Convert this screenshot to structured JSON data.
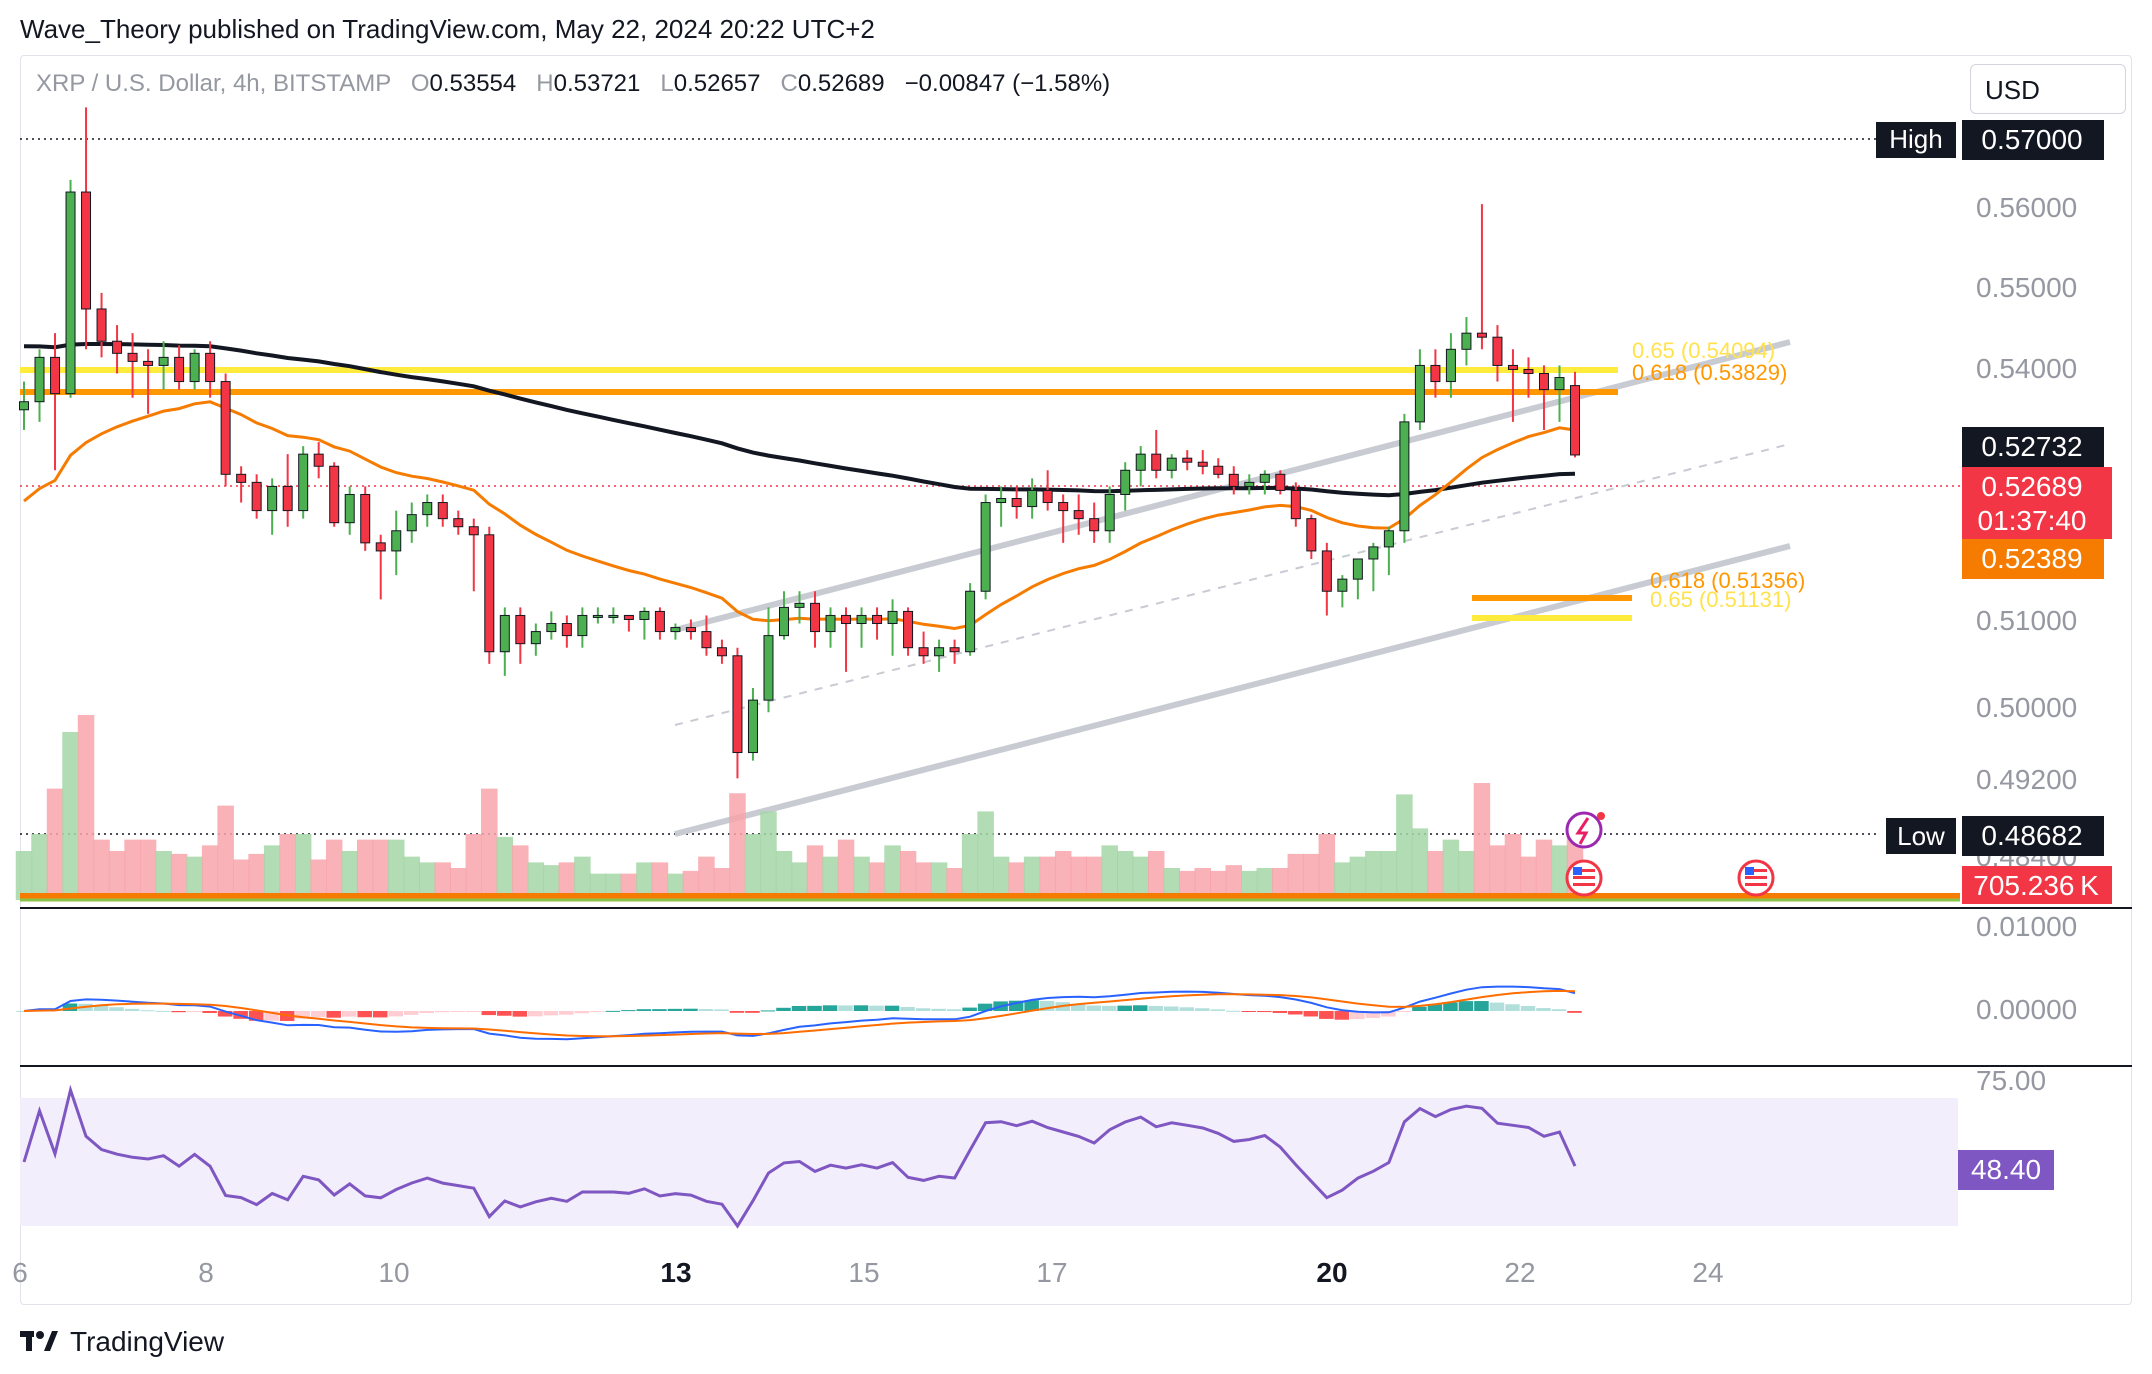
{
  "publisher_line": "Wave_Theory published on TradingView.com, May 22, 2024 20:22 UTC+2",
  "symbol": {
    "name": "XRP / U.S. Dollar, 4h, BITSTAMP",
    "o_label": "O",
    "o_value": "0.53554",
    "h_label": "H",
    "h_value": "0.53721",
    "l_label": "L",
    "l_value": "0.52657",
    "c_label": "C",
    "c_value": "0.52689",
    "change": "−0.00847 (−1.58%)"
  },
  "currency_button": "USD",
  "colors": {
    "up": "#4caf50",
    "down": "#f23645",
    "ema_black": "#131722",
    "ema_orange": "#f57c00",
    "fib_yellow": "#ffeb3b",
    "fib_orange": "#ff9800",
    "channel": "#c9cbd3",
    "macd_line": "#2962ff",
    "signal_line": "#ff6d00",
    "rsi": "#7e57c2"
  },
  "price_axis": [
    "0.56000",
    "0.55000",
    "0.54000",
    "0.51000",
    "0.50000",
    "0.49200",
    "0.48400"
  ],
  "price_labels": {
    "high_tag": "High",
    "high_value": "0.57000",
    "low_tag": "Low",
    "low_value": "0.48682",
    "ema_black_value": "0.52732",
    "last_price": "0.52689",
    "countdown": "01:37:40",
    "ema_orange_value": "0.52389",
    "volume_value": "705.236 K"
  },
  "fib_labels": {
    "upper_065": "0.65 (0.54094)",
    "upper_0618": "0.618 (0.53829)",
    "lower_0618": "0.618 (0.51356)",
    "lower_065": "0.65 (0.51131)"
  },
  "macd_axis": [
    "0.01000",
    "0.00000"
  ],
  "rsi_axis_top": "75.00",
  "rsi_value": "48.40",
  "time_axis": [
    "6",
    "8",
    "10",
    "13",
    "15",
    "17",
    "20",
    "22",
    "24"
  ],
  "footer_brand": "TradingView",
  "chart_data": {
    "type": "candlestick",
    "title": "XRP / U.S. Dollar, 4h, BITSTAMP",
    "ylim": [
      0.484,
      0.57
    ],
    "high": 0.57,
    "low": 0.48682,
    "candles": [
      [
        0.5325,
        0.536,
        0.53,
        0.5335
      ],
      [
        0.5335,
        0.54,
        0.531,
        0.539
      ],
      [
        0.539,
        0.542,
        0.525,
        0.5345
      ],
      [
        0.5345,
        0.561,
        0.534,
        0.5595
      ],
      [
        0.5595,
        0.57,
        0.54,
        0.545
      ],
      [
        0.545,
        0.547,
        0.539,
        0.541
      ],
      [
        0.541,
        0.543,
        0.537,
        0.5395
      ],
      [
        0.5395,
        0.542,
        0.534,
        0.5385
      ],
      [
        0.5385,
        0.54,
        0.532,
        0.538
      ],
      [
        0.538,
        0.541,
        0.535,
        0.539
      ],
      [
        0.539,
        0.5405,
        0.535,
        0.536
      ],
      [
        0.536,
        0.54,
        0.535,
        0.5395
      ],
      [
        0.5395,
        0.541,
        0.534,
        0.536
      ],
      [
        0.536,
        0.537,
        0.523,
        0.5245
      ],
      [
        0.5245,
        0.5255,
        0.521,
        0.5235
      ],
      [
        0.5235,
        0.5245,
        0.519,
        0.52
      ],
      [
        0.52,
        0.524,
        0.517,
        0.523
      ],
      [
        0.523,
        0.527,
        0.518,
        0.52
      ],
      [
        0.52,
        0.528,
        0.519,
        0.527
      ],
      [
        0.527,
        0.5285,
        0.524,
        0.5255
      ],
      [
        0.5255,
        0.526,
        0.518,
        0.5185
      ],
      [
        0.5185,
        0.523,
        0.517,
        0.522
      ],
      [
        0.522,
        0.523,
        0.515,
        0.516
      ],
      [
        0.516,
        0.517,
        0.509,
        0.515
      ],
      [
        0.515,
        0.52,
        0.512,
        0.5175
      ],
      [
        0.5175,
        0.521,
        0.516,
        0.5195
      ],
      [
        0.5195,
        0.522,
        0.518,
        0.521
      ],
      [
        0.521,
        0.522,
        0.518,
        0.519
      ],
      [
        0.519,
        0.52,
        0.517,
        0.518
      ],
      [
        0.518,
        0.519,
        0.51,
        0.517
      ],
      [
        0.517,
        0.518,
        0.501,
        0.5025
      ],
      [
        0.5025,
        0.508,
        0.4995,
        0.507
      ],
      [
        0.507,
        0.508,
        0.501,
        0.5035
      ],
      [
        0.5035,
        0.506,
        0.502,
        0.505
      ],
      [
        0.505,
        0.5075,
        0.504,
        0.506
      ],
      [
        0.506,
        0.507,
        0.503,
        0.5045
      ],
      [
        0.5045,
        0.508,
        0.503,
        0.507
      ],
      [
        0.507,
        0.508,
        0.506,
        0.507
      ],
      [
        0.507,
        0.508,
        0.506,
        0.507
      ],
      [
        0.507,
        0.507,
        0.505,
        0.5065
      ],
      [
        0.5065,
        0.508,
        0.504,
        0.5075
      ],
      [
        0.5075,
        0.508,
        0.504,
        0.505
      ],
      [
        0.505,
        0.506,
        0.504,
        0.5055
      ],
      [
        0.5055,
        0.5065,
        0.504,
        0.505
      ],
      [
        0.505,
        0.507,
        0.502,
        0.503
      ],
      [
        0.503,
        0.504,
        0.501,
        0.502
      ],
      [
        0.502,
        0.503,
        0.4868,
        0.49
      ],
      [
        0.49,
        0.498,
        0.489,
        0.4965
      ],
      [
        0.4965,
        0.508,
        0.495,
        0.5045
      ],
      [
        0.5045,
        0.51,
        0.504,
        0.508
      ],
      [
        0.508,
        0.51,
        0.506,
        0.5085
      ],
      [
        0.5085,
        0.51,
        0.503,
        0.505
      ],
      [
        0.505,
        0.508,
        0.503,
        0.507
      ],
      [
        0.507,
        0.508,
        0.5,
        0.506
      ],
      [
        0.506,
        0.508,
        0.503,
        0.507
      ],
      [
        0.507,
        0.508,
        0.504,
        0.506
      ],
      [
        0.506,
        0.509,
        0.502,
        0.5075
      ],
      [
        0.5075,
        0.508,
        0.502,
        0.503
      ],
      [
        0.503,
        0.505,
        0.501,
        0.502
      ],
      [
        0.502,
        0.504,
        0.5,
        0.503
      ],
      [
        0.503,
        0.504,
        0.501,
        0.5025
      ],
      [
        0.5025,
        0.511,
        0.502,
        0.51
      ],
      [
        0.51,
        0.522,
        0.509,
        0.521
      ],
      [
        0.521,
        0.523,
        0.518,
        0.5215
      ],
      [
        0.5215,
        0.523,
        0.519,
        0.5205
      ],
      [
        0.5205,
        0.524,
        0.519,
        0.5225
      ],
      [
        0.5225,
        0.525,
        0.52,
        0.521
      ],
      [
        0.521,
        0.522,
        0.516,
        0.52
      ],
      [
        0.52,
        0.522,
        0.517,
        0.519
      ],
      [
        0.519,
        0.521,
        0.516,
        0.5175
      ],
      [
        0.5175,
        0.523,
        0.516,
        0.522
      ],
      [
        0.522,
        0.526,
        0.52,
        0.525
      ],
      [
        0.525,
        0.528,
        0.523,
        0.527
      ],
      [
        0.527,
        0.53,
        0.524,
        0.525
      ],
      [
        0.525,
        0.527,
        0.524,
        0.5265
      ],
      [
        0.5265,
        0.5275,
        0.525,
        0.526
      ],
      [
        0.526,
        0.5275,
        0.5245,
        0.5255
      ],
      [
        0.5255,
        0.5265,
        0.524,
        0.5245
      ],
      [
        0.5245,
        0.5255,
        0.522,
        0.523
      ],
      [
        0.523,
        0.5245,
        0.522,
        0.5235
      ],
      [
        0.5235,
        0.525,
        0.522,
        0.5245
      ],
      [
        0.5245,
        0.525,
        0.522,
        0.5225
      ],
      [
        0.5225,
        0.5235,
        0.518,
        0.519
      ],
      [
        0.519,
        0.5195,
        0.514,
        0.515
      ],
      [
        0.515,
        0.516,
        0.507,
        0.51
      ],
      [
        0.51,
        0.512,
        0.508,
        0.5115
      ],
      [
        0.5115,
        0.514,
        0.509,
        0.514
      ],
      [
        0.514,
        0.516,
        0.51,
        0.5155
      ],
      [
        0.5155,
        0.518,
        0.512,
        0.5175
      ],
      [
        0.5175,
        0.532,
        0.516,
        0.531
      ],
      [
        0.531,
        0.54,
        0.53,
        0.538
      ],
      [
        0.538,
        0.54,
        0.534,
        0.536
      ],
      [
        0.536,
        0.542,
        0.534,
        0.54
      ],
      [
        0.54,
        0.544,
        0.538,
        0.542
      ],
      [
        0.542,
        0.558,
        0.54,
        0.5415
      ],
      [
        0.5415,
        0.543,
        0.536,
        0.538
      ],
      [
        0.538,
        0.54,
        0.531,
        0.5375
      ],
      [
        0.5375,
        0.539,
        0.534,
        0.537
      ],
      [
        0.537,
        0.538,
        0.53,
        0.535
      ],
      [
        0.535,
        0.538,
        0.531,
        0.5365
      ],
      [
        0.5355,
        0.5372,
        0.5266,
        0.5269
      ]
    ],
    "volume_latest": "705.236K",
    "macd_latest": 0.0,
    "rsi_latest": 48.4,
    "rsi_ylim": [
      25,
      75
    ],
    "x_tick_labels": [
      "6",
      "8",
      "10",
      "13",
      "15",
      "17",
      "20",
      "22",
      "24"
    ]
  }
}
